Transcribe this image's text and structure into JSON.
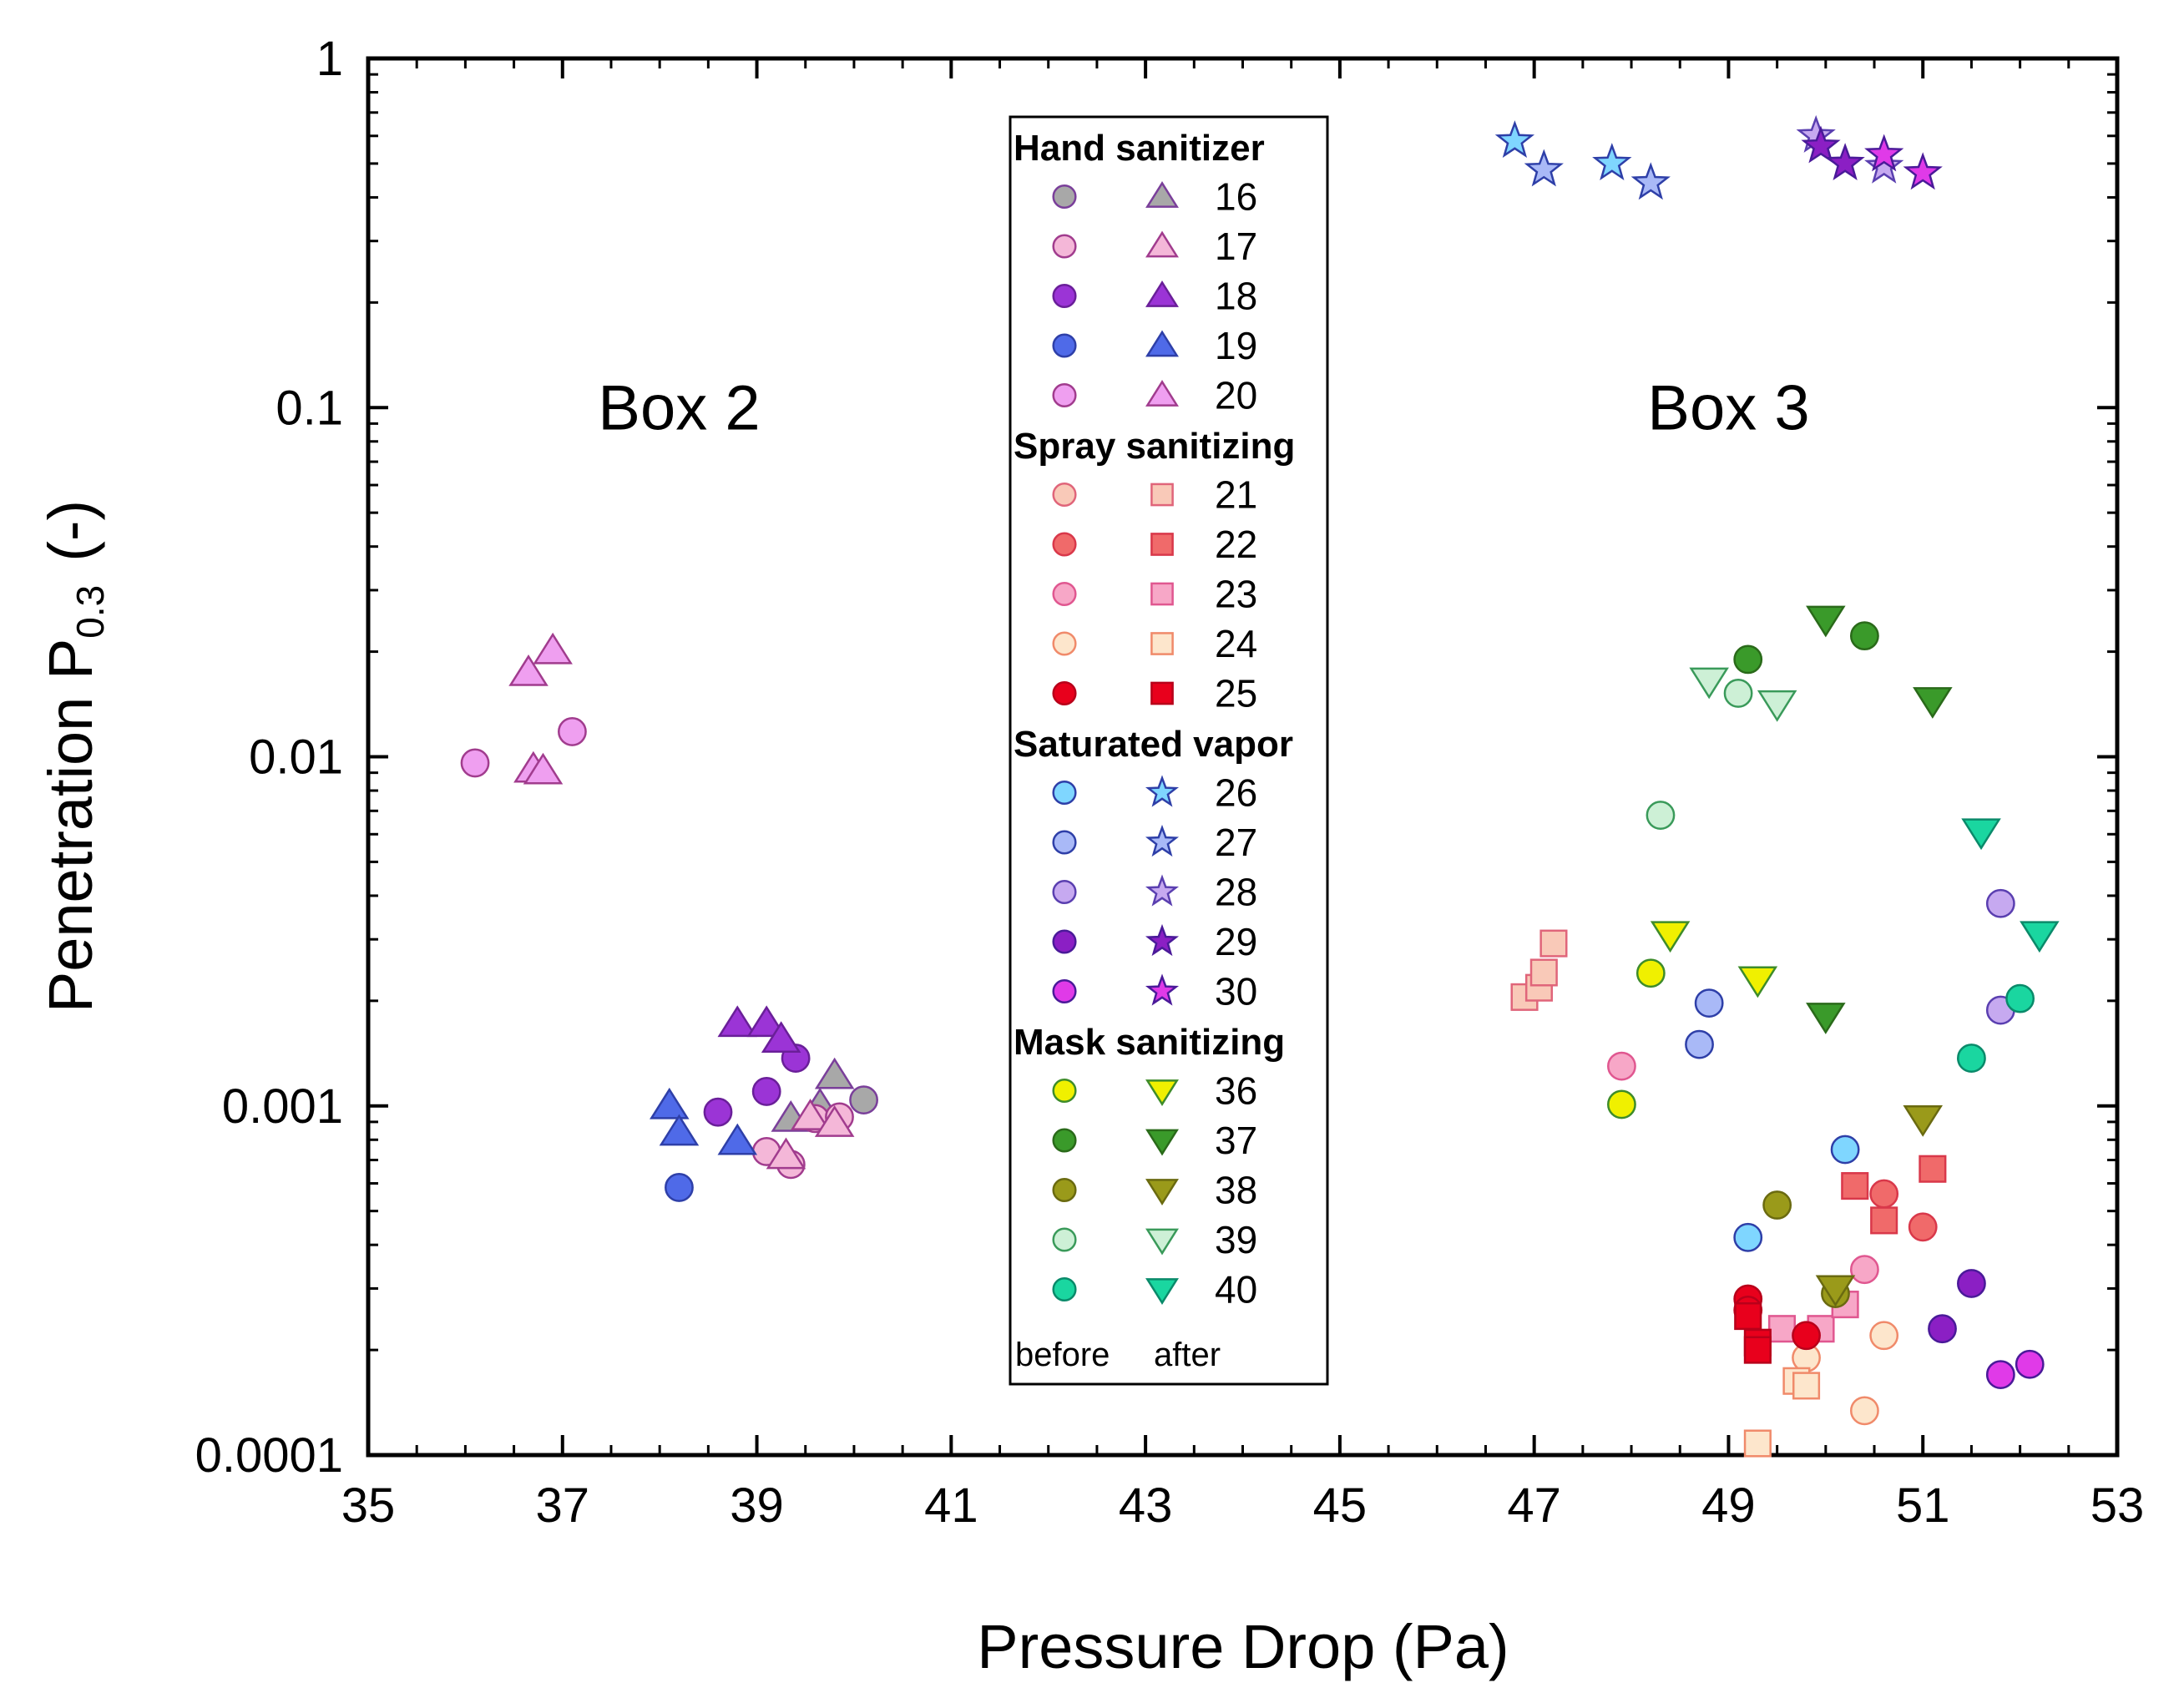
{
  "chart_data": {
    "type": "scatter",
    "xlabel": "Pressure Drop (Pa)",
    "ylabel_main": "Penetration P",
    "ylabel_sub": "0.3",
    "ylabel_suffix": "(-)",
    "xlim": [
      35,
      53
    ],
    "ylim": [
      0.0001,
      1
    ],
    "yscale": "log",
    "grid": false,
    "x_ticks": [
      35,
      37,
      39,
      41,
      43,
      45,
      47,
      49,
      51,
      53
    ],
    "x_tick_labels": [
      "35",
      "37",
      "39",
      "41",
      "43",
      "45",
      "47",
      "49",
      "51",
      "53"
    ],
    "y_ticks": [
      0.0001,
      0.001,
      0.01,
      0.1,
      1
    ],
    "y_tick_labels": [
      "0.0001",
      "0.001",
      "0.01",
      "0.1",
      "1"
    ],
    "annotations": [
      {
        "text": "Box 2",
        "x": 38.2,
        "y": 0.1
      },
      {
        "text": "Box 3",
        "x": 49.0,
        "y": 0.1
      }
    ],
    "legend": {
      "placement": "top-center",
      "groups": [
        {
          "title": "Hand sanitizer",
          "entries": [
            "16",
            "17",
            "18",
            "19",
            "20"
          ]
        },
        {
          "title": "Spray sanitizing",
          "entries": [
            "21",
            "22",
            "23",
            "24",
            "25"
          ]
        },
        {
          "title": "Saturated vapor",
          "entries": [
            "26",
            "27",
            "28",
            "29",
            "30"
          ]
        },
        {
          "title": "Mask sanitizing",
          "entries": [
            "36",
            "37",
            "38",
            "39",
            "40"
          ]
        }
      ],
      "footer_before": "before",
      "footer_after": "after"
    },
    "series": [
      {
        "name": "16",
        "group": "Hand sanitizer",
        "before_marker": "circle",
        "after_marker": "triangle-up",
        "color": "#a8a8a8",
        "edge": "#7a3f9a",
        "before": [
          [
            40.1,
            0.00104
          ]
        ],
        "after": [
          [
            39.35,
            0.00092
          ],
          [
            39.8,
            0.00122
          ],
          [
            39.65,
            0.001
          ]
        ]
      },
      {
        "name": "17",
        "group": "Hand sanitizer",
        "before_marker": "circle",
        "after_marker": "triangle-up",
        "color": "#f4b7d8",
        "edge": "#a13c8e",
        "before": [
          [
            39.1,
            0.00074
          ],
          [
            39.35,
            0.00068
          ],
          [
            39.6,
            0.00092
          ],
          [
            39.85,
            0.00093
          ]
        ],
        "after": [
          [
            39.3,
            0.00072
          ],
          [
            39.55,
            0.00093
          ],
          [
            39.8,
            0.00089
          ]
        ]
      },
      {
        "name": "18",
        "group": "Hand sanitizer",
        "before_marker": "circle",
        "after_marker": "triangle-up",
        "color": "#9b34d6",
        "edge": "#6a1f99",
        "before": [
          [
            39.4,
            0.00137
          ],
          [
            39.1,
            0.0011
          ],
          [
            38.6,
            0.00096
          ]
        ],
        "after": [
          [
            38.8,
            0.00172
          ],
          [
            39.1,
            0.00172
          ],
          [
            39.25,
            0.00155
          ]
        ]
      },
      {
        "name": "19",
        "group": "Hand sanitizer",
        "before_marker": "circle",
        "after_marker": "triangle-up",
        "color": "#4f6ae8",
        "edge": "#2e3fa8",
        "before": [
          [
            38.2,
            0.000584
          ]
        ],
        "after": [
          [
            38.1,
            0.001
          ],
          [
            38.2,
            0.00084
          ],
          [
            38.8,
            0.00079
          ]
        ]
      },
      {
        "name": "20",
        "group": "Hand sanitizer",
        "before_marker": "circle",
        "after_marker": "triangle-up",
        "color": "#ef9ff0",
        "edge": "#a13c8e",
        "before": [
          [
            36.1,
            0.0096
          ],
          [
            37.1,
            0.0118
          ]
        ],
        "after": [
          [
            36.65,
            0.0174
          ],
          [
            36.9,
            0.0201
          ],
          [
            36.7,
            0.0092
          ],
          [
            36.8,
            0.0091
          ]
        ]
      },
      {
        "name": "21",
        "group": "Spray sanitizing",
        "before_marker": "circle",
        "after_marker": "square",
        "color": "#f9c9b8",
        "edge": "#e0657a",
        "before": [],
        "after": [
          [
            46.9,
            0.00205
          ],
          [
            47.05,
            0.00218
          ],
          [
            47.1,
            0.00241
          ],
          [
            47.2,
            0.00292
          ]
        ]
      },
      {
        "name": "22",
        "group": "Spray sanitizing",
        "before_marker": "circle",
        "after_marker": "square",
        "color": "#f06a6a",
        "edge": "#d9384a",
        "before": [
          [
            50.6,
            0.00056
          ],
          [
            51.0,
            0.00045
          ]
        ],
        "after": [
          [
            50.3,
            0.00059
          ],
          [
            50.6,
            0.00047
          ],
          [
            51.1,
            0.00066
          ]
        ]
      },
      {
        "name": "23",
        "group": "Spray sanitizing",
        "before_marker": "circle",
        "after_marker": "square",
        "color": "#f7a7c7",
        "edge": "#e05790",
        "before": [
          [
            47.9,
            0.0013
          ],
          [
            50.4,
            0.00034
          ]
        ],
        "after": [
          [
            49.55,
            0.00023
          ],
          [
            49.95,
            0.00023
          ],
          [
            50.2,
            0.00027
          ]
        ]
      },
      {
        "name": "24",
        "group": "Spray sanitizing",
        "before_marker": "circle",
        "after_marker": "square",
        "color": "#fde6cc",
        "edge": "#f08a6a",
        "before": [
          [
            49.8,
            0.00019
          ],
          [
            50.4,
            0.000134
          ],
          [
            50.6,
            0.00022
          ]
        ],
        "after": [
          [
            49.3,
            0.000108
          ],
          [
            49.7,
            0.000163
          ],
          [
            49.8,
            0.000158
          ]
        ]
      },
      {
        "name": "25",
        "group": "Spray sanitizing",
        "before_marker": "circle",
        "after_marker": "square",
        "color": "#e8001c",
        "edge": "#b8001a",
        "before": [
          [
            49.2,
            0.00028
          ],
          [
            49.2,
            0.00026
          ],
          [
            49.8,
            0.00022
          ]
        ],
        "after": [
          [
            49.2,
            0.00025
          ],
          [
            49.3,
            0.00021
          ],
          [
            49.3,
            0.0002
          ]
        ]
      },
      {
        "name": "26",
        "group": "Saturated vapor",
        "before_marker": "circle",
        "after_marker": "star",
        "color": "#7fd6ff",
        "edge": "#2e3fa8",
        "before": [
          [
            50.2,
            0.00075
          ],
          [
            49.2,
            0.00042
          ]
        ],
        "after": [
          [
            46.8,
            0.58
          ],
          [
            47.8,
            0.5
          ]
        ]
      },
      {
        "name": "27",
        "group": "Saturated vapor",
        "before_marker": "circle",
        "after_marker": "star",
        "color": "#a9b9f7",
        "edge": "#2e3fa8",
        "before": [
          [
            48.8,
            0.00197
          ],
          [
            48.7,
            0.0015
          ]
        ],
        "after": [
          [
            47.1,
            0.48
          ],
          [
            48.2,
            0.44
          ]
        ]
      },
      {
        "name": "28",
        "group": "Saturated vapor",
        "before_marker": "circle",
        "after_marker": "star",
        "color": "#c6a9f0",
        "edge": "#5a3fb0",
        "before": [
          [
            51.8,
            0.0038
          ],
          [
            51.8,
            0.00188
          ]
        ],
        "after": [
          [
            50.6,
            0.49
          ],
          [
            49.9,
            0.6
          ]
        ]
      },
      {
        "name": "29",
        "group": "Saturated vapor",
        "before_marker": "circle",
        "after_marker": "star",
        "color": "#8b1fc4",
        "edge": "#4a1a99",
        "before": [
          [
            51.5,
            0.00031
          ],
          [
            51.2,
            0.00023
          ]
        ],
        "after": [
          [
            49.95,
            0.56
          ],
          [
            50.2,
            0.5
          ]
        ]
      },
      {
        "name": "30",
        "group": "Saturated vapor",
        "before_marker": "circle",
        "after_marker": "star",
        "color": "#e03ae8",
        "edge": "#4a1a99",
        "before": [
          [
            51.8,
            0.00017
          ],
          [
            52.1,
            0.000182
          ]
        ],
        "after": [
          [
            50.6,
            0.53
          ],
          [
            51.0,
            0.47
          ]
        ]
      },
      {
        "name": "36",
        "group": "Mask sanitizing",
        "before_marker": "circle",
        "after_marker": "triangle-down",
        "color": "#f0f000",
        "edge": "#3e8c2a",
        "before": [
          [
            48.2,
            0.0024
          ],
          [
            47.9,
            0.00101
          ]
        ],
        "after": [
          [
            48.4,
            0.0031
          ],
          [
            49.3,
            0.0023
          ]
        ]
      },
      {
        "name": "37",
        "group": "Mask sanitizing",
        "before_marker": "circle",
        "after_marker": "triangle-down",
        "color": "#3a9a2a",
        "edge": "#2a6a1a",
        "before": [
          [
            49.2,
            0.019
          ],
          [
            50.4,
            0.0222
          ]
        ],
        "after": [
          [
            50.0,
            0.0248
          ],
          [
            51.1,
            0.0145
          ],
          [
            50.0,
            0.00181
          ]
        ]
      },
      {
        "name": "38",
        "group": "Mask sanitizing",
        "before_marker": "circle",
        "after_marker": "triangle-down",
        "color": "#9a9a1a",
        "edge": "#6a6a10",
        "before": [
          [
            49.5,
            0.00052
          ],
          [
            50.1,
            0.00029
          ]
        ],
        "after": [
          [
            51.0,
            0.00092
          ],
          [
            50.1,
            0.0003
          ]
        ]
      },
      {
        "name": "39",
        "group": "Mask sanitizing",
        "before_marker": "circle",
        "after_marker": "triangle-down",
        "color": "#cdf0d6",
        "edge": "#3a9a5a",
        "before": [
          [
            48.3,
            0.0068
          ],
          [
            49.1,
            0.0152
          ]
        ],
        "after": [
          [
            48.8,
            0.0165
          ],
          [
            49.5,
            0.0142
          ]
        ]
      },
      {
        "name": "40",
        "group": "Mask sanitizing",
        "before_marker": "circle",
        "after_marker": "triangle-down",
        "color": "#1ad6a0",
        "edge": "#0a8a6a",
        "before": [
          [
            51.5,
            0.00137
          ],
          [
            52.0,
            0.00203
          ]
        ],
        "after": [
          [
            51.6,
            0.0061
          ],
          [
            52.2,
            0.0031
          ]
        ]
      }
    ]
  }
}
